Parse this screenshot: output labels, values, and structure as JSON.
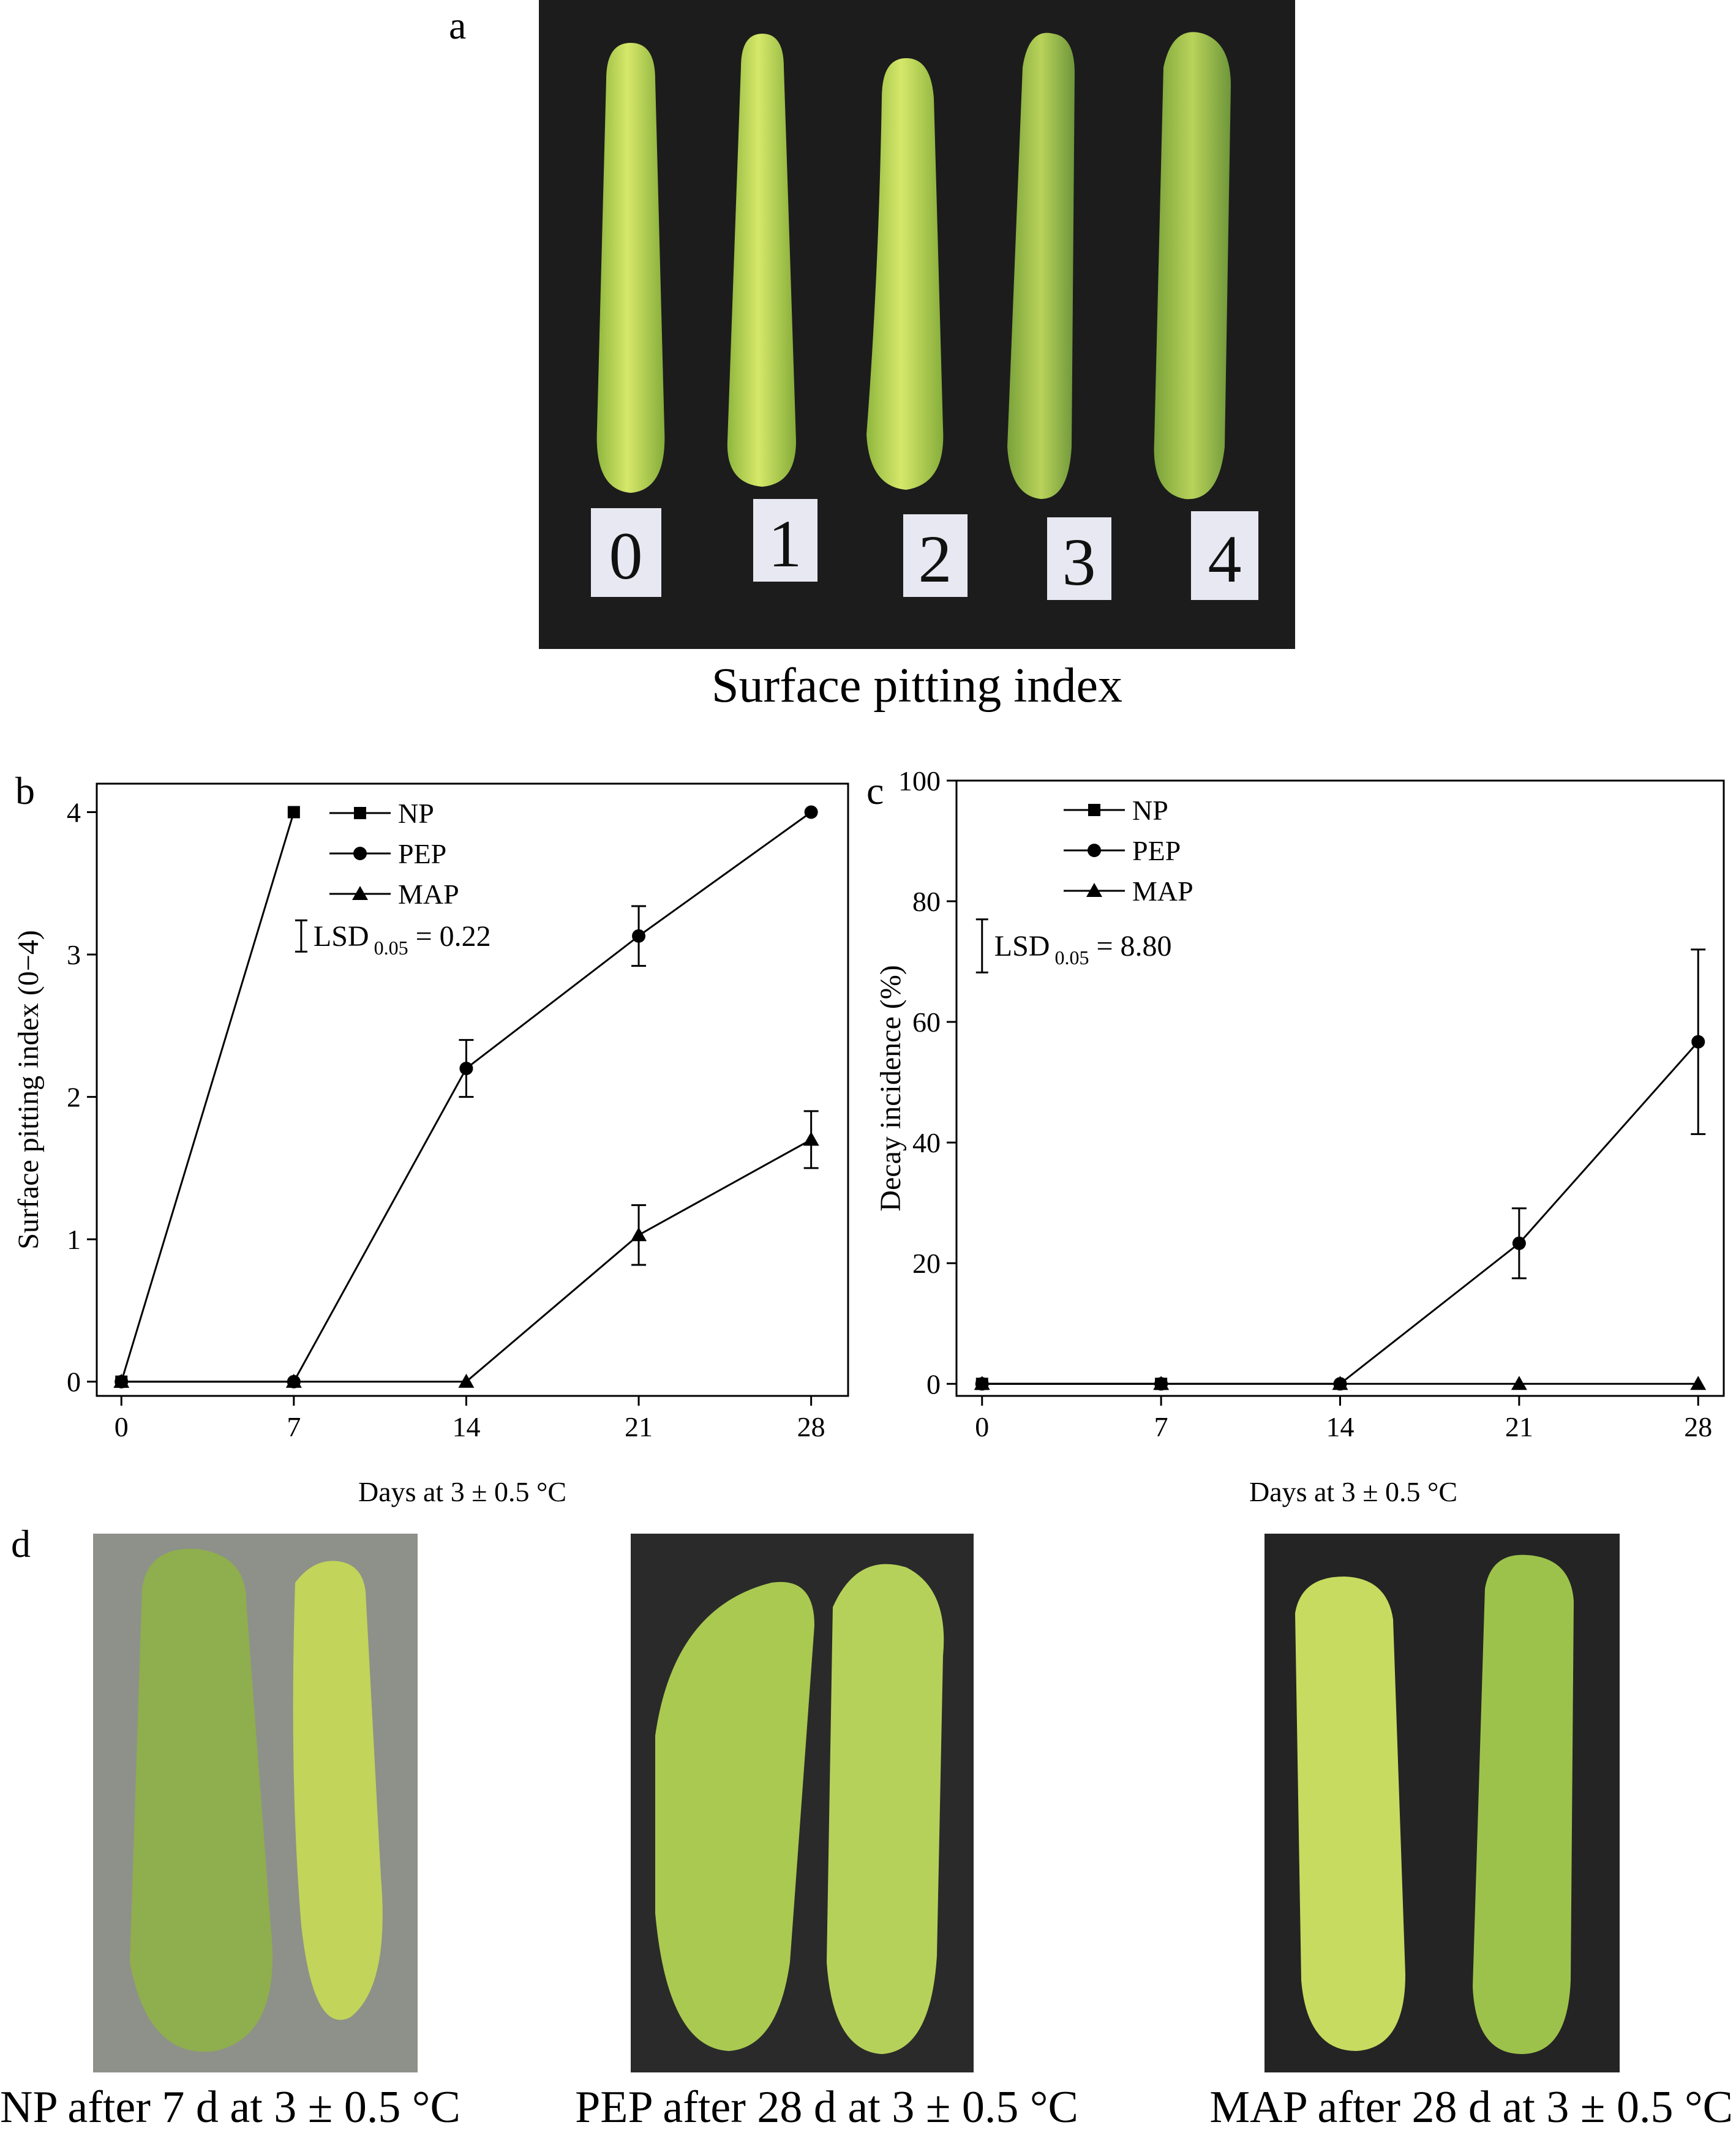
{
  "panels": {
    "a": {
      "letter": "a",
      "caption": "Surface pitting index",
      "index_labels": [
        "0",
        "1",
        "2",
        "3",
        "4"
      ]
    },
    "d": {
      "letter": "d",
      "captions": [
        "NP after 7 d at 3 ± 0.5 °C",
        "PEP after 28 d at 3 ± 0.5 °C",
        "MAP after 28 d at 3 ± 0.5 °C"
      ]
    }
  },
  "colors": {
    "line": "#000000",
    "photo_background": "#1c1c1c",
    "zucchini_light": "#c6dd5a",
    "zucchini_mid": "#a9c94a",
    "zucchini_dark": "#6f9a3a"
  },
  "chart_data": [
    {
      "letter": "b",
      "type": "line",
      "x": [
        0,
        7,
        14,
        21,
        28
      ],
      "xlabel": "Days at 3 ± 0.5 °C",
      "ylabel": "Surface pitting index (0−4)",
      "xlim": [
        -1,
        29.5
      ],
      "ylim": [
        -0.1,
        4.2
      ],
      "xticks": [
        0,
        7,
        14,
        21,
        28
      ],
      "yticks": [
        0,
        1,
        2,
        3,
        4
      ],
      "legend_placement": "top-left",
      "lsd": {
        "label": "LSD",
        "subscript": "0.05",
        "value_text": " = 0.22",
        "value": 0.22,
        "x": 7.3,
        "y_center": 3.13
      },
      "series": [
        {
          "name": "NP",
          "marker": "square",
          "x": [
            0,
            7
          ],
          "y": [
            0,
            4
          ],
          "err": [
            0,
            0
          ]
        },
        {
          "name": "PEP",
          "marker": "circle",
          "x": [
            0,
            7,
            14,
            21,
            28
          ],
          "y": [
            0,
            0,
            2.2,
            3.13,
            4
          ],
          "err": [
            0,
            0,
            0.2,
            0.21,
            0
          ]
        },
        {
          "name": "MAP",
          "marker": "triangle",
          "x": [
            0,
            7,
            14,
            21,
            28
          ],
          "y": [
            0,
            0,
            0,
            1.03,
            1.7
          ],
          "err": [
            0,
            0,
            0,
            0.21,
            0.2
          ]
        }
      ]
    },
    {
      "letter": "c",
      "type": "line",
      "x": [
        0,
        7,
        14,
        21,
        28
      ],
      "xlabel": "Days at 3 ± 0.5 °C",
      "ylabel": "Decay incidence (%)",
      "xlim": [
        -1,
        29
      ],
      "ylim": [
        -2,
        100
      ],
      "xticks": [
        0,
        7,
        14,
        21,
        28
      ],
      "yticks": [
        0,
        20,
        40,
        60,
        80,
        100
      ],
      "legend_placement": "top-left",
      "lsd": {
        "label": "LSD",
        "subscript": "0.05",
        "value_text": " = 8.80",
        "value": 8.8,
        "x": 0,
        "y_center": 72.6
      },
      "series": [
        {
          "name": "NP",
          "marker": "square",
          "x": [
            0,
            7
          ],
          "y": [
            0,
            0
          ],
          "err": [
            0,
            0
          ]
        },
        {
          "name": "PEP",
          "marker": "circle",
          "x": [
            0,
            7,
            14,
            21,
            28
          ],
          "y": [
            0,
            0,
            0,
            23.3,
            56.7
          ],
          "err": [
            0,
            0,
            0,
            5.8,
            15.3
          ]
        },
        {
          "name": "MAP",
          "marker": "triangle",
          "x": [
            0,
            7,
            14,
            21,
            28
          ],
          "y": [
            0,
            0,
            0,
            0,
            0
          ],
          "err": [
            0,
            0,
            0,
            0,
            0
          ]
        }
      ]
    }
  ]
}
